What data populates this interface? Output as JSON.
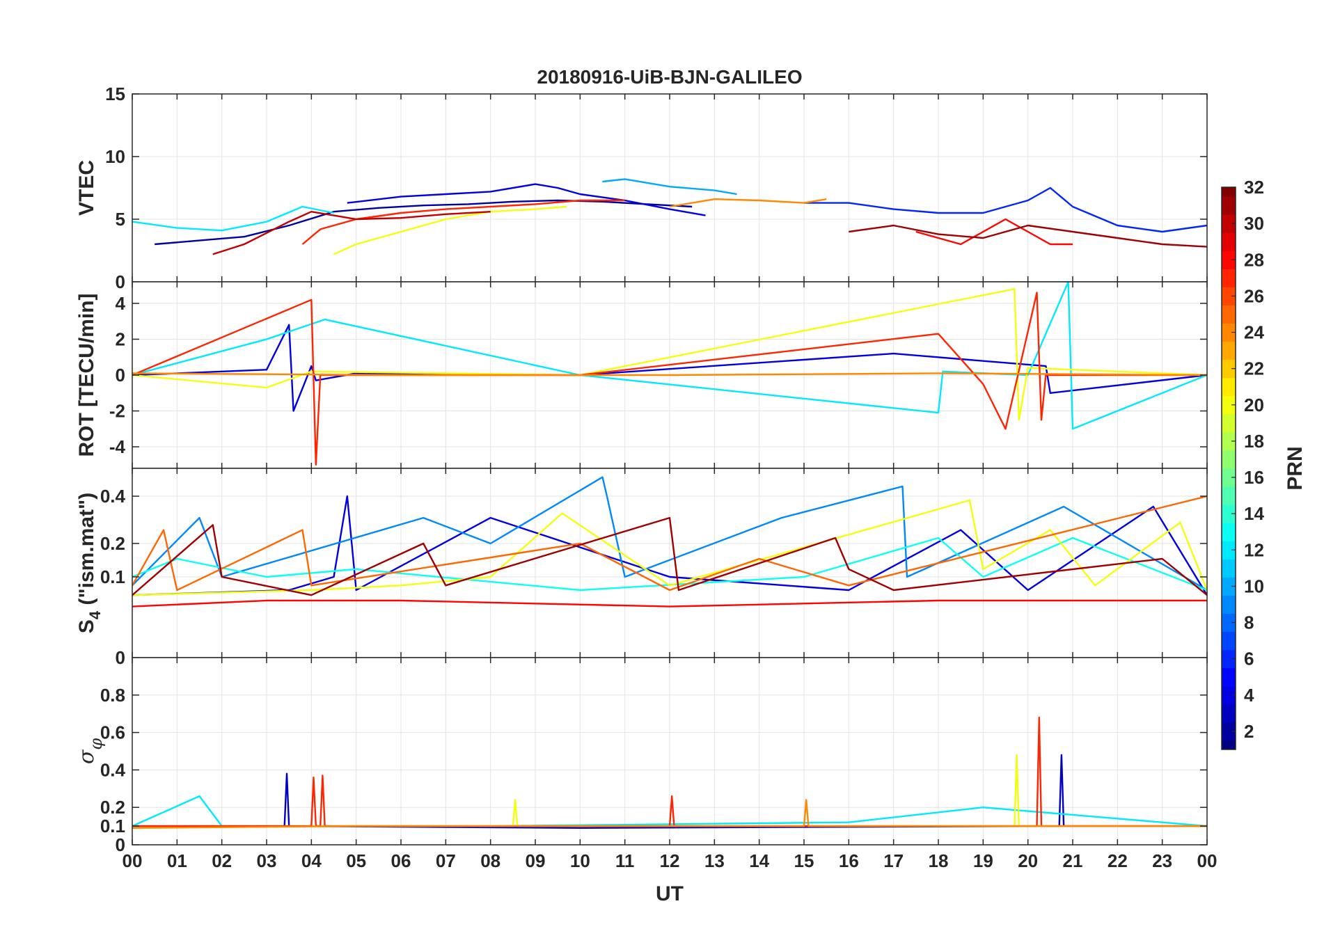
{
  "chart_data": {
    "type": "line",
    "title": "20180916-UiB-BJN-GALILEO",
    "xlabel": "UT",
    "x_tick_labels": [
      "00",
      "01",
      "02",
      "03",
      "04",
      "05",
      "06",
      "07",
      "08",
      "09",
      "10",
      "11",
      "12",
      "13",
      "14",
      "15",
      "16",
      "17",
      "18",
      "19",
      "20",
      "21",
      "22",
      "23",
      "00"
    ],
    "xlim": [
      0,
      24
    ],
    "colorbar": {
      "label": "PRN",
      "range": [
        1,
        32
      ],
      "ticks": [
        "2",
        "4",
        "6",
        "8",
        "10",
        "12",
        "14",
        "16",
        "18",
        "20",
        "22",
        "24",
        "26",
        "28",
        "30",
        "32"
      ],
      "colormap": "jet"
    },
    "panels": [
      {
        "id": "vtec",
        "ylabel": "VTEC",
        "ylabel_parts": {
          "main": "VTEC"
        },
        "ylim": [
          0,
          15
        ],
        "y_ticks": [
          0,
          5,
          10,
          15
        ],
        "y_tick_labels": [
          "0",
          "5",
          "10",
          "15"
        ],
        "series": [
          {
            "prn": 2,
            "x": [
              0.5,
              1.5,
              2.5,
              3.5,
              4.5,
              5.5,
              6.5,
              7.5,
              8.5,
              9.5,
              10.5,
              11.5,
              12.5
            ],
            "values": [
              3.0,
              3.3,
              3.6,
              4.5,
              5.6,
              5.9,
              6.1,
              6.2,
              6.4,
              6.5,
              6.4,
              6.2,
              6.0
            ]
          },
          {
            "prn": 4,
            "x": [
              4.8,
              6.0,
              7.0,
              8.0,
              9.0,
              9.5,
              10.0,
              11.0,
              12.0,
              12.8
            ],
            "values": [
              6.3,
              6.8,
              7.0,
              7.2,
              7.8,
              7.5,
              7.0,
              6.5,
              5.8,
              5.3
            ]
          },
          {
            "prn": 6,
            "x": [
              15.0,
              16.0,
              17.0,
              18.0,
              19.0,
              20.0,
              20.5,
              21.0,
              22.0,
              23.0,
              24.0
            ],
            "values": [
              6.3,
              6.3,
              5.8,
              5.5,
              5.5,
              6.5,
              7.5,
              6.0,
              4.5,
              4.0,
              4.5
            ]
          },
          {
            "prn": 10,
            "x": [
              10.5,
              11.0,
              12.0,
              13.0,
              13.5
            ],
            "values": [
              8.0,
              8.2,
              7.6,
              7.3,
              7.0
            ]
          },
          {
            "prn": 12,
            "x": [
              0.0,
              1.0,
              2.0,
              3.0,
              3.8,
              4.5
            ],
            "values": [
              4.8,
              4.3,
              4.1,
              4.8,
              6.0,
              5.5
            ]
          },
          {
            "prn": 20,
            "x": [
              4.5,
              5.0,
              6.0,
              7.0,
              8.0,
              9.0,
              9.7
            ],
            "values": [
              2.2,
              3.0,
              4.0,
              5.0,
              5.6,
              5.8,
              6.0
            ]
          },
          {
            "prn": 24,
            "x": [
              12.0,
              13.0,
              14.0,
              15.0,
              15.5
            ],
            "values": [
              6.0,
              6.6,
              6.5,
              6.3,
              6.6
            ]
          },
          {
            "prn": 27,
            "x": [
              3.8,
              4.2,
              5.0,
              6.0,
              7.0,
              8.0,
              9.0,
              10.0,
              11.0
            ],
            "values": [
              3.0,
              4.2,
              5.0,
              5.5,
              5.8,
              6.0,
              6.2,
              6.5,
              6.5
            ]
          },
          {
            "prn": 30,
            "x": [
              1.8,
              2.5,
              3.5,
              4.0,
              4.5,
              5.0,
              6.0,
              7.0,
              8.0
            ],
            "values": [
              2.2,
              3.0,
              4.8,
              5.6,
              5.3,
              5.0,
              5.1,
              5.4,
              5.6
            ]
          },
          {
            "prn": 28,
            "x": [
              17.5,
              18.5,
              19.5,
              20.0,
              20.5,
              21.0
            ],
            "values": [
              4.0,
              3.0,
              5.0,
              4.0,
              3.0,
              3.0
            ]
          },
          {
            "prn": 31,
            "x": [
              16.0,
              17.0,
              18.0,
              19.0,
              20.0,
              21.0,
              22.0,
              23.0,
              24.0
            ],
            "values": [
              4.0,
              4.5,
              3.8,
              3.5,
              4.5,
              4.0,
              3.5,
              3.0,
              2.8
            ]
          }
        ]
      },
      {
        "id": "rot",
        "ylabel": "ROT [TECU/min]",
        "ylabel_parts": {
          "main": "ROT [TECU/min]"
        },
        "ylim": [
          -5.2,
          5.2
        ],
        "y_ticks": [
          -4,
          -2,
          0,
          2,
          4
        ],
        "y_tick_labels": [
          "-4",
          "-2",
          "0",
          "2",
          "4"
        ],
        "series": [
          {
            "prn": 4,
            "x": [
              0.0,
              3.0,
              3.5,
              3.6,
              4.0,
              4.1,
              5.0,
              10.0,
              17.0,
              20.4,
              20.5,
              24.0
            ],
            "values": [
              0.0,
              0.3,
              2.8,
              -2.0,
              0.5,
              -0.3,
              0.1,
              0.0,
              1.2,
              0.5,
              -1.0,
              0.0
            ]
          },
          {
            "prn": 12,
            "x": [
              0.0,
              3.0,
              4.3,
              10.0,
              18.0,
              18.1,
              20.0,
              20.9,
              21.0,
              24.0
            ],
            "values": [
              0.0,
              2.0,
              3.1,
              0.0,
              -2.1,
              0.2,
              0.0,
              5.2,
              -3.0,
              0.0
            ]
          },
          {
            "prn": 20,
            "x": [
              0.0,
              3.0,
              4.0,
              10.0,
              19.7,
              19.8,
              20.0,
              24.0
            ],
            "values": [
              0.0,
              -0.7,
              0.2,
              0.0,
              4.8,
              -2.5,
              0.4,
              0.0
            ]
          },
          {
            "prn": 27,
            "x": [
              0.0,
              4.0,
              4.1,
              4.2,
              10.0,
              18.0,
              19.0,
              19.5,
              20.2,
              20.3,
              20.4,
              24.0
            ],
            "values": [
              0.0,
              4.2,
              -5.0,
              0.0,
              0.0,
              2.3,
              -0.5,
              -3.0,
              4.6,
              -2.5,
              0.0,
              0.0
            ]
          },
          {
            "prn": 24,
            "x": [
              0.0,
              6.0,
              12.0,
              18.0,
              24.0
            ],
            "values": [
              0.1,
              0.0,
              0.0,
              0.1,
              0.0
            ]
          }
        ]
      },
      {
        "id": "s4",
        "ylabel": "S4 (\"ism.mat\")",
        "ylabel_parts": {
          "main": "S",
          "sub": "4",
          "rest": " (\"ism.mat\")"
        },
        "ylim": [
          0,
          0.55
        ],
        "y_scale": "power-law",
        "y_ticks": [
          0,
          0.1,
          0.2,
          0.4
        ],
        "y_tick_labels": [
          "0",
          "0.1",
          "0.2",
          "0.4"
        ],
        "series": [
          {
            "prn": 4,
            "x": [
              0.0,
              3.5,
              4.5,
              4.8,
              5.0,
              8.0,
              12.0,
              16.0,
              18.5,
              20.0,
              22.8,
              24.0
            ],
            "values": [
              0.06,
              0.07,
              0.1,
              0.4,
              0.07,
              0.3,
              0.1,
              0.07,
              0.25,
              0.07,
              0.35,
              0.06
            ]
          },
          {
            "prn": 9,
            "x": [
              0.0,
              1.5,
              2.0,
              6.5,
              8.0,
              10.5,
              10.6,
              11.0,
              14.5,
              17.2,
              17.3,
              20.8,
              24.0
            ],
            "values": [
              0.08,
              0.3,
              0.1,
              0.3,
              0.2,
              0.5,
              0.4,
              0.1,
              0.3,
              0.45,
              0.1,
              0.35,
              0.07
            ]
          },
          {
            "prn": 13,
            "x": [
              0.0,
              1.0,
              3.0,
              5.0,
              10.0,
              15.0,
              18.0,
              19.0,
              21.0,
              24.0
            ],
            "values": [
              0.1,
              0.15,
              0.1,
              0.12,
              0.07,
              0.1,
              0.22,
              0.1,
              0.22,
              0.07
            ]
          },
          {
            "prn": 20,
            "x": [
              0.0,
              4.0,
              6.0,
              8.0,
              9.6,
              12.0,
              18.7,
              19.0,
              20.5,
              21.5,
              23.4,
              24.0
            ],
            "values": [
              0.06,
              0.07,
              0.08,
              0.1,
              0.32,
              0.08,
              0.38,
              0.12,
              0.25,
              0.08,
              0.28,
              0.07
            ]
          },
          {
            "prn": 25,
            "x": [
              0.0,
              0.7,
              1.0,
              3.8,
              4.0,
              10.0,
              12.0,
              14.0,
              16.0,
              24.0
            ],
            "values": [
              0.08,
              0.25,
              0.07,
              0.25,
              0.08,
              0.2,
              0.07,
              0.15,
              0.08,
              0.4
            ]
          },
          {
            "prn": 31,
            "x": [
              0.0,
              1.8,
              2.0,
              4.0,
              6.5,
              7.0,
              12.0,
              12.2,
              15.7,
              16.0,
              17.0,
              23.0,
              24.0
            ],
            "values": [
              0.06,
              0.27,
              0.1,
              0.06,
              0.2,
              0.08,
              0.3,
              0.07,
              0.22,
              0.12,
              0.07,
              0.15,
              0.06
            ]
          },
          {
            "prn": 28,
            "x": [
              0.0,
              3.0,
              6.0,
              12.0,
              18.0,
              24.0
            ],
            "values": [
              0.04,
              0.05,
              0.05,
              0.04,
              0.05,
              0.05
            ]
          }
        ]
      },
      {
        "id": "sigma",
        "ylabel": "σφ",
        "ylabel_parts": {
          "main": "σ",
          "sub": "φ"
        },
        "ylim": [
          0,
          1
        ],
        "y_ticks": [
          0,
          0.1,
          0.2,
          0.4,
          0.6,
          0.8
        ],
        "y_tick_labels": [
          "0",
          "0.1",
          "0.2",
          "0.4",
          "0.6",
          "0.8"
        ],
        "series": [
          {
            "prn": 3,
            "x": [
              0.0,
              3.4,
              3.45,
              3.5,
              10.0,
              20.7,
              20.75,
              20.8,
              24.0
            ],
            "values": [
              0.1,
              0.1,
              0.38,
              0.1,
              0.09,
              0.1,
              0.48,
              0.1,
              0.1
            ]
          },
          {
            "prn": 12,
            "x": [
              0.0,
              1.5,
              2.0,
              8.0,
              16.0,
              19.0,
              24.0
            ],
            "values": [
              0.1,
              0.26,
              0.1,
              0.1,
              0.12,
              0.2,
              0.1
            ]
          },
          {
            "prn": 20,
            "x": [
              0.0,
              8.5,
              8.55,
              8.6,
              19.7,
              19.75,
              19.8,
              24.0
            ],
            "values": [
              0.1,
              0.1,
              0.24,
              0.1,
              0.1,
              0.48,
              0.1,
              0.1
            ]
          },
          {
            "prn": 27,
            "x": [
              0.0,
              4.0,
              4.05,
              4.1,
              4.2,
              4.25,
              4.3,
              12.0,
              12.05,
              12.1,
              20.2,
              20.25,
              20.3,
              24.0
            ],
            "values": [
              0.1,
              0.1,
              0.36,
              0.1,
              0.1,
              0.37,
              0.1,
              0.1,
              0.26,
              0.1,
              0.1,
              0.68,
              0.1,
              0.1
            ]
          },
          {
            "prn": 24,
            "x": [
              0.0,
              5.0,
              10.0,
              15.0,
              15.05,
              15.1,
              24.0
            ],
            "values": [
              0.09,
              0.1,
              0.1,
              0.1,
              0.24,
              0.1,
              0.1
            ]
          }
        ]
      }
    ],
    "grid": true
  }
}
